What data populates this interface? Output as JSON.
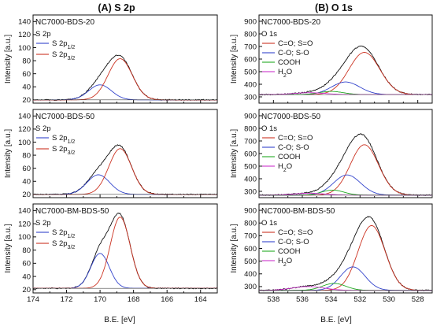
{
  "figure": {
    "left_title": "(A)   S 2p",
    "right_title": "(B)   O 1s",
    "xlabel": "B.E. [eV]",
    "ylabel": "Intensity [a.u.]"
  },
  "chart_data": [
    {
      "type": "line",
      "panel": "A1",
      "sample": "NC7000-BDS-20",
      "legend_title": "S 2p",
      "xlabel": "",
      "ylabel": "Intensity [a.u.]",
      "xlim": [
        174,
        163
      ],
      "ylim": [
        15,
        150
      ],
      "x_reversed": true,
      "yticks": [
        20,
        40,
        60,
        80,
        100,
        120,
        140
      ],
      "xticks": [],
      "peaks": [
        {
          "name": "S 2p1/2",
          "center": 170.0,
          "height": 23,
          "fwhm": 1.6,
          "color": "#3344cc"
        },
        {
          "name": "S 2p3/2",
          "center": 168.8,
          "height": 63,
          "fwhm": 1.7,
          "color": "#cc3322"
        }
      ],
      "baseline": 20,
      "envelope_color": "#111111",
      "legend": [
        {
          "label": "S 2p",
          "sub": "1/2",
          "color": "#3344cc"
        },
        {
          "label": "S 2p",
          "sub": "3/2",
          "color": "#cc3322"
        }
      ]
    },
    {
      "type": "line",
      "panel": "A2",
      "sample": "NC7000-BDS-50",
      "legend_title": "S 2p",
      "xlabel": "",
      "ylabel": "Intensity [a.u.]",
      "xlim": [
        174,
        163
      ],
      "ylim": [
        15,
        150
      ],
      "x_reversed": true,
      "yticks": [
        20,
        40,
        60,
        80,
        100,
        120,
        140
      ],
      "xticks": [],
      "peaks": [
        {
          "name": "S 2p1/2",
          "center": 170.1,
          "height": 30,
          "fwhm": 1.6,
          "color": "#3344cc"
        },
        {
          "name": "S 2p3/2",
          "center": 168.8,
          "height": 70,
          "fwhm": 1.6,
          "color": "#cc3322"
        }
      ],
      "baseline": 20,
      "envelope_color": "#111111",
      "legend": [
        {
          "label": "S 2p",
          "sub": "1/2",
          "color": "#3344cc"
        },
        {
          "label": "S 2p",
          "sub": "3/2",
          "color": "#cc3322"
        }
      ]
    },
    {
      "type": "line",
      "panel": "A3",
      "sample": "NC7000-BM-BDS-50",
      "legend_title": "S 2p",
      "xlabel": "B.E. [eV]",
      "ylabel": "Intensity [a.u.]",
      "xlim": [
        174,
        163
      ],
      "ylim": [
        15,
        150
      ],
      "x_reversed": true,
      "yticks": [
        20,
        40,
        60,
        80,
        100,
        120,
        140
      ],
      "xticks": [
        174,
        172,
        170,
        168,
        166,
        164
      ],
      "peaks": [
        {
          "name": "S 2p1/2",
          "center": 170.0,
          "height": 53,
          "fwhm": 1.3,
          "color": "#3344cc"
        },
        {
          "name": "S 2p3/2",
          "center": 168.8,
          "height": 108,
          "fwhm": 1.4,
          "color": "#cc3322"
        }
      ],
      "baseline": 22,
      "envelope_color": "#111111",
      "legend": [
        {
          "label": "S 2p",
          "sub": "1/2",
          "color": "#3344cc"
        },
        {
          "label": "S 2p",
          "sub": "3/2",
          "color": "#cc3322"
        }
      ]
    },
    {
      "type": "line",
      "panel": "B1",
      "sample": "NC7000-BDS-20",
      "legend_title": "O 1s",
      "xlabel": "",
      "ylabel": "Intensity [a.u.]",
      "xlim": [
        539,
        527
      ],
      "ylim": [
        250,
        950
      ],
      "x_reversed": true,
      "yticks": [
        300,
        400,
        500,
        600,
        700,
        800,
        900
      ],
      "xticks": [],
      "peaks": [
        {
          "name": "C=O; S=O",
          "center": 531.7,
          "height": 335,
          "fwhm": 2.5,
          "color": "#cc3322"
        },
        {
          "name": "C-O; S-O",
          "center": 533.0,
          "height": 100,
          "fwhm": 2.3,
          "color": "#3344cc"
        },
        {
          "name": "COOH",
          "center": 534.0,
          "height": 25,
          "fwhm": 2.0,
          "color": "#22aa22"
        },
        {
          "name": "H2O",
          "center": 535.5,
          "height": 15,
          "fwhm": 2.5,
          "color": "#cc33cc"
        }
      ],
      "baseline": 318,
      "envelope_color": "#111111",
      "legend": [
        {
          "label": "C=O; S=O",
          "sub": "",
          "color": "#cc3322"
        },
        {
          "label": "C-O; S-O",
          "sub": "",
          "color": "#3344cc"
        },
        {
          "label": "COOH",
          "sub": "",
          "color": "#22aa22"
        },
        {
          "label": "H",
          "sub": "2",
          "suffix": "O",
          "color": "#cc33cc"
        }
      ]
    },
    {
      "type": "line",
      "panel": "B2",
      "sample": "NC7000-BDS-50",
      "legend_title": "O 1s",
      "xlabel": "",
      "ylabel": "Intensity [a.u.]",
      "xlim": [
        539,
        527
      ],
      "ylim": [
        250,
        950
      ],
      "x_reversed": true,
      "yticks": [
        300,
        400,
        500,
        600,
        700,
        800,
        900
      ],
      "xticks": [],
      "peaks": [
        {
          "name": "C=O; S=O",
          "center": 531.7,
          "height": 400,
          "fwhm": 2.3,
          "color": "#cc3322"
        },
        {
          "name": "C-O; S-O",
          "center": 532.9,
          "height": 160,
          "fwhm": 2.2,
          "color": "#3344cc"
        },
        {
          "name": "COOH",
          "center": 533.9,
          "height": 40,
          "fwhm": 1.8,
          "color": "#22aa22"
        },
        {
          "name": "H2O",
          "center": 535.5,
          "height": 15,
          "fwhm": 2.5,
          "color": "#cc33cc"
        }
      ],
      "baseline": 270,
      "envelope_color": "#111111",
      "legend": [
        {
          "label": "C=O; S=O",
          "sub": "",
          "color": "#cc3322"
        },
        {
          "label": "C-O; S-O",
          "sub": "",
          "color": "#3344cc"
        },
        {
          "label": "COOH",
          "sub": "",
          "color": "#22aa22"
        },
        {
          "label": "H",
          "sub": "2",
          "suffix": "O",
          "color": "#cc33cc"
        }
      ]
    },
    {
      "type": "line",
      "panel": "B3",
      "sample": "NC7000-BM-BDS-50",
      "legend_title": "O 1s",
      "xlabel": "B.E. [eV]",
      "ylabel": "Intensity [a.u.]",
      "xlim": [
        539,
        527
      ],
      "ylim": [
        250,
        950
      ],
      "x_reversed": true,
      "yticks": [
        300,
        400,
        500,
        600,
        700,
        800,
        900
      ],
      "xticks": [
        538,
        536,
        534,
        532,
        530,
        528
      ],
      "peaks": [
        {
          "name": "C=O; S=O",
          "center": 531.2,
          "height": 510,
          "fwhm": 2.2,
          "color": "#cc3322"
        },
        {
          "name": "C-O; S-O",
          "center": 532.5,
          "height": 185,
          "fwhm": 2.0,
          "color": "#3344cc"
        },
        {
          "name": "COOH",
          "center": 533.8,
          "height": 55,
          "fwhm": 1.9,
          "color": "#22aa22"
        },
        {
          "name": "H2O",
          "center": 535.6,
          "height": 30,
          "fwhm": 2.6,
          "color": "#cc33cc"
        }
      ],
      "baseline": 270,
      "envelope_color": "#111111",
      "legend": [
        {
          "label": "C=O; S=O",
          "sub": "",
          "color": "#cc3322"
        },
        {
          "label": "C-O; S-O",
          "sub": "",
          "color": "#3344cc"
        },
        {
          "label": "COOH",
          "sub": "",
          "color": "#22aa22"
        },
        {
          "label": "H",
          "sub": "2",
          "suffix": "O",
          "color": "#cc33cc"
        }
      ]
    }
  ]
}
